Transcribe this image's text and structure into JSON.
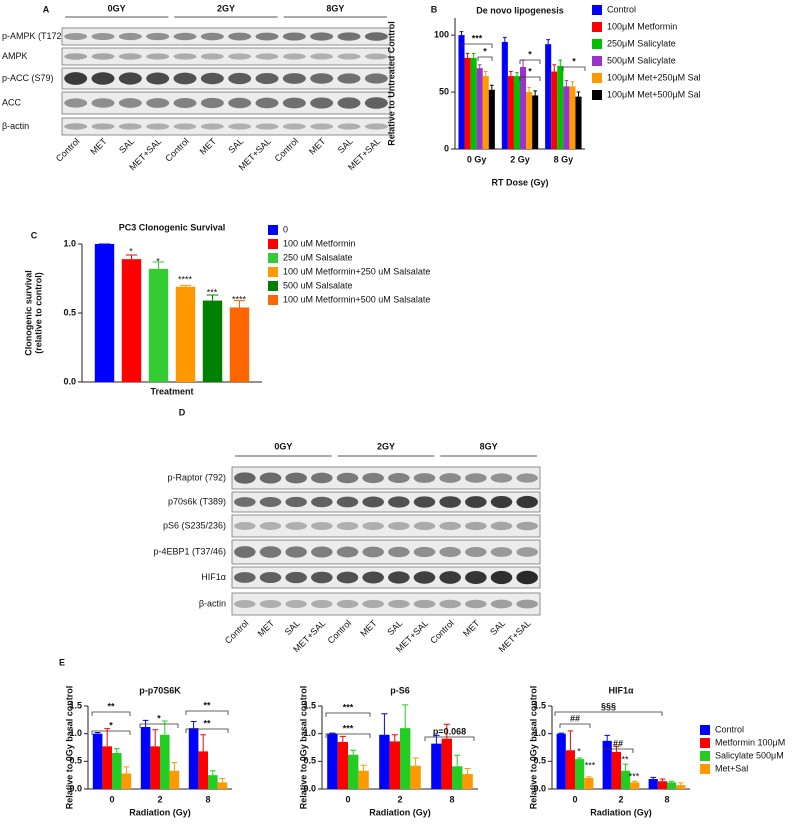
{
  "blots": [
    {
      "panel": "A",
      "groups": [
        "0GY",
        "2GY",
        "8GY"
      ],
      "rows": [
        "p-AMPK (T172)",
        "AMPK",
        "p-ACC (S79)",
        "ACC",
        "β-actin"
      ],
      "lanes": [
        "Control",
        "MET",
        "SAL",
        "MET+SAL",
        "Control",
        "MET",
        "SAL",
        "MET+SAL",
        "Control",
        "MET",
        "SAL",
        "MET+SAL"
      ]
    },
    {
      "panel": "D",
      "groups": [
        "0GY",
        "2GY",
        "8GY"
      ],
      "rows": [
        "p-Raptor (792)",
        "p70s6k (T389)",
        "pS6 (S235/236)",
        "p-4EBP1 (T37/46)",
        "HIF1α",
        "β-actin"
      ],
      "lanes": [
        "Control",
        "MET",
        "SAL",
        "MET+SAL",
        "Control",
        "MET",
        "SAL",
        "MET+SAL",
        "Control",
        "MET",
        "SAL",
        "MET+SAL"
      ]
    }
  ],
  "chart_data": [
    {
      "type": "bar",
      "panel": "B",
      "title": "De novo lipogenesis",
      "xlabel": "RT Dose (Gy)",
      "ylabel": [
        "Relative to Untreated Control"
      ],
      "categories": [
        "0 Gy",
        "2 Gy",
        "8 Gy"
      ],
      "ylim": [
        0,
        115
      ],
      "yticks": [
        0,
        50,
        100
      ],
      "legend": "right",
      "series": [
        {
          "name": "Control",
          "color": "#0000ff",
          "values": [
            100,
            94,
            92
          ],
          "errors": [
            3,
            4,
            4
          ]
        },
        {
          "name": "100μM Metformin",
          "color": "#ff0000",
          "values": [
            80,
            64,
            68
          ],
          "errors": [
            4,
            4,
            6
          ]
        },
        {
          "name": "250μM Salicylate",
          "color": "#00c000",
          "values": [
            80,
            64,
            73
          ],
          "errors": [
            4,
            3,
            5
          ]
        },
        {
          "name": "500μM Salicylate",
          "color": "#9933cc",
          "values": [
            71,
            72,
            55
          ],
          "errors": [
            3,
            6,
            5
          ]
        },
        {
          "name": "100μM Met+250μM Sal",
          "color": "#ff9900",
          "values": [
            64,
            50,
            55
          ],
          "errors": [
            4,
            4,
            4
          ]
        },
        {
          "name": "100μM Met+500μM Sal",
          "color": "#000000",
          "values": [
            52,
            47,
            46
          ],
          "errors": [
            4,
            4,
            4
          ]
        }
      ],
      "annotations": [
        "***",
        "*",
        "*",
        "*",
        "*"
      ]
    },
    {
      "type": "bar",
      "panel": "C",
      "title": "PC3 Clonogenic Survival",
      "xlabel": "Treatment",
      "ylabel": [
        "Clonogenic survival",
        "(relative to control)"
      ],
      "categories": [
        null
      ],
      "ylim": [
        0,
        1
      ],
      "yticks": [
        {
          "value": 0,
          "label": "0.0"
        },
        {
          "value": 0.5,
          "label": "0.5"
        },
        {
          "value": 1,
          "label": "1.0"
        }
      ],
      "legend": "right",
      "series": [
        {
          "name": "0",
          "color": "#0000ff",
          "values": [
            1.0
          ],
          "errors": [
            0
          ]
        },
        {
          "name": "100 uM Metformin",
          "color": "#ff0000",
          "values": [
            0.89
          ],
          "errors": [
            0.03
          ]
        },
        {
          "name": "250 uM Salsalate",
          "color": "#33cc33",
          "values": [
            0.82
          ],
          "errors": [
            0.05
          ]
        },
        {
          "name": "100 uM Metformin+250 uM Salsalate",
          "color": "#ff9900",
          "values": [
            0.69
          ],
          "errors": [
            0.01
          ]
        },
        {
          "name": "500 uM Salsalate",
          "color": "#008000",
          "values": [
            0.59
          ],
          "errors": [
            0.04
          ]
        },
        {
          "name": "100 uM Metformin+500 uM Salsalate",
          "color": "#ff6600",
          "values": [
            0.54
          ],
          "errors": [
            0.05
          ]
        }
      ],
      "annotations": [
        "*",
        "*",
        "****",
        "***",
        "****"
      ]
    },
    {
      "type": "bar",
      "panel": "E",
      "title": "p-p70S6K",
      "xlabel": "Radiation (Gy)",
      "ylabel": [
        "Relative to 0Gy basal control"
      ],
      "categories": [
        "0",
        "2",
        "8"
      ],
      "ylim": [
        0,
        1.5
      ],
      "yticks": [
        {
          "value": 0,
          "label": "0.0"
        },
        {
          "value": 0.5,
          "label": "0.5"
        },
        {
          "value": 1,
          "label": "1.0"
        },
        {
          "value": 1.5,
          "label": "1.5"
        }
      ],
      "series": [
        {
          "color": "#0000ff",
          "values": [
            1.0,
            1.12,
            1.1
          ],
          "errors": [
            0.02,
            0.12,
            0.12
          ]
        },
        {
          "color": "#ff0000",
          "values": [
            0.77,
            0.77,
            0.68
          ],
          "errors": [
            0.32,
            0.3,
            0.3
          ]
        },
        {
          "color": "#22cc22",
          "values": [
            0.65,
            0.98,
            0.25
          ],
          "errors": [
            0.08,
            0.25,
            0.08
          ]
        },
        {
          "color": "#ff9900",
          "values": [
            0.28,
            0.33,
            0.12
          ],
          "errors": [
            0.12,
            0.15,
            0.07
          ]
        }
      ],
      "annotations": [
        "**",
        "*",
        "*",
        "**",
        "**"
      ]
    },
    {
      "type": "bar",
      "title": "p-S6",
      "xlabel": "Radiation (Gy)",
      "ylabel": [
        "Relative to 0Gy basal control"
      ],
      "categories": [
        "0",
        "2",
        "8"
      ],
      "ylim": [
        0,
        1.5
      ],
      "yticks": [
        {
          "value": 0,
          "label": "0.0"
        },
        {
          "value": 0.5,
          "label": "0.5"
        },
        {
          "value": 1,
          "label": "1.0"
        },
        {
          "value": 1.5,
          "label": "1.5"
        }
      ],
      "series": [
        {
          "color": "#0000ff",
          "values": [
            1.0,
            0.98,
            0.82
          ],
          "errors": [
            0.01,
            0.38,
            0.15
          ]
        },
        {
          "color": "#ff0000",
          "values": [
            0.85,
            0.86,
            0.91
          ],
          "errors": [
            0.1,
            0.12,
            0.26
          ]
        },
        {
          "color": "#22cc22",
          "values": [
            0.62,
            1.1,
            0.41
          ],
          "errors": [
            0.08,
            0.42,
            0.2
          ]
        },
        {
          "color": "#ff9900",
          "values": [
            0.33,
            0.42,
            0.27
          ],
          "errors": [
            0.1,
            0.14,
            0.1
          ]
        }
      ],
      "annotations": [
        "***",
        "***",
        "p=0.068"
      ]
    },
    {
      "type": "bar",
      "title": "HIF1α",
      "xlabel": "Radiation (Gy)",
      "ylabel": [
        "Relative to 0Gy basal control"
      ],
      "categories": [
        "0",
        "2",
        "8"
      ],
      "ylim": [
        0,
        1.5
      ],
      "yticks": [
        {
          "value": 0,
          "label": "0.0"
        },
        {
          "value": 0.5,
          "label": "0.5"
        },
        {
          "value": 1,
          "label": "1.0"
        },
        {
          "value": 1.5,
          "label": "1.5"
        }
      ],
      "legend": "right",
      "series": [
        {
          "name": "Control",
          "color": "#0000ff",
          "values": [
            1.0,
            0.87,
            0.18
          ],
          "errors": [
            0.01,
            0.1,
            0.03
          ]
        },
        {
          "name": "Metformin 100μM",
          "color": "#ff0000",
          "values": [
            0.7,
            0.67,
            0.14
          ],
          "errors": [
            0.35,
            0.1,
            0.04
          ]
        },
        {
          "name": "Salicylate 500μM",
          "color": "#22cc22",
          "values": [
            0.54,
            0.33,
            0.12
          ],
          "errors": [
            0.02,
            0.12,
            0.02
          ]
        },
        {
          "name": "Met+Sal",
          "color": "#ff9900",
          "values": [
            0.2,
            0.12,
            0.07
          ],
          "errors": [
            0.02,
            0.02,
            0.04
          ]
        }
      ],
      "annotations": [
        "§§§",
        "##",
        "##",
        "*",
        "***",
        "**",
        "***"
      ]
    }
  ]
}
